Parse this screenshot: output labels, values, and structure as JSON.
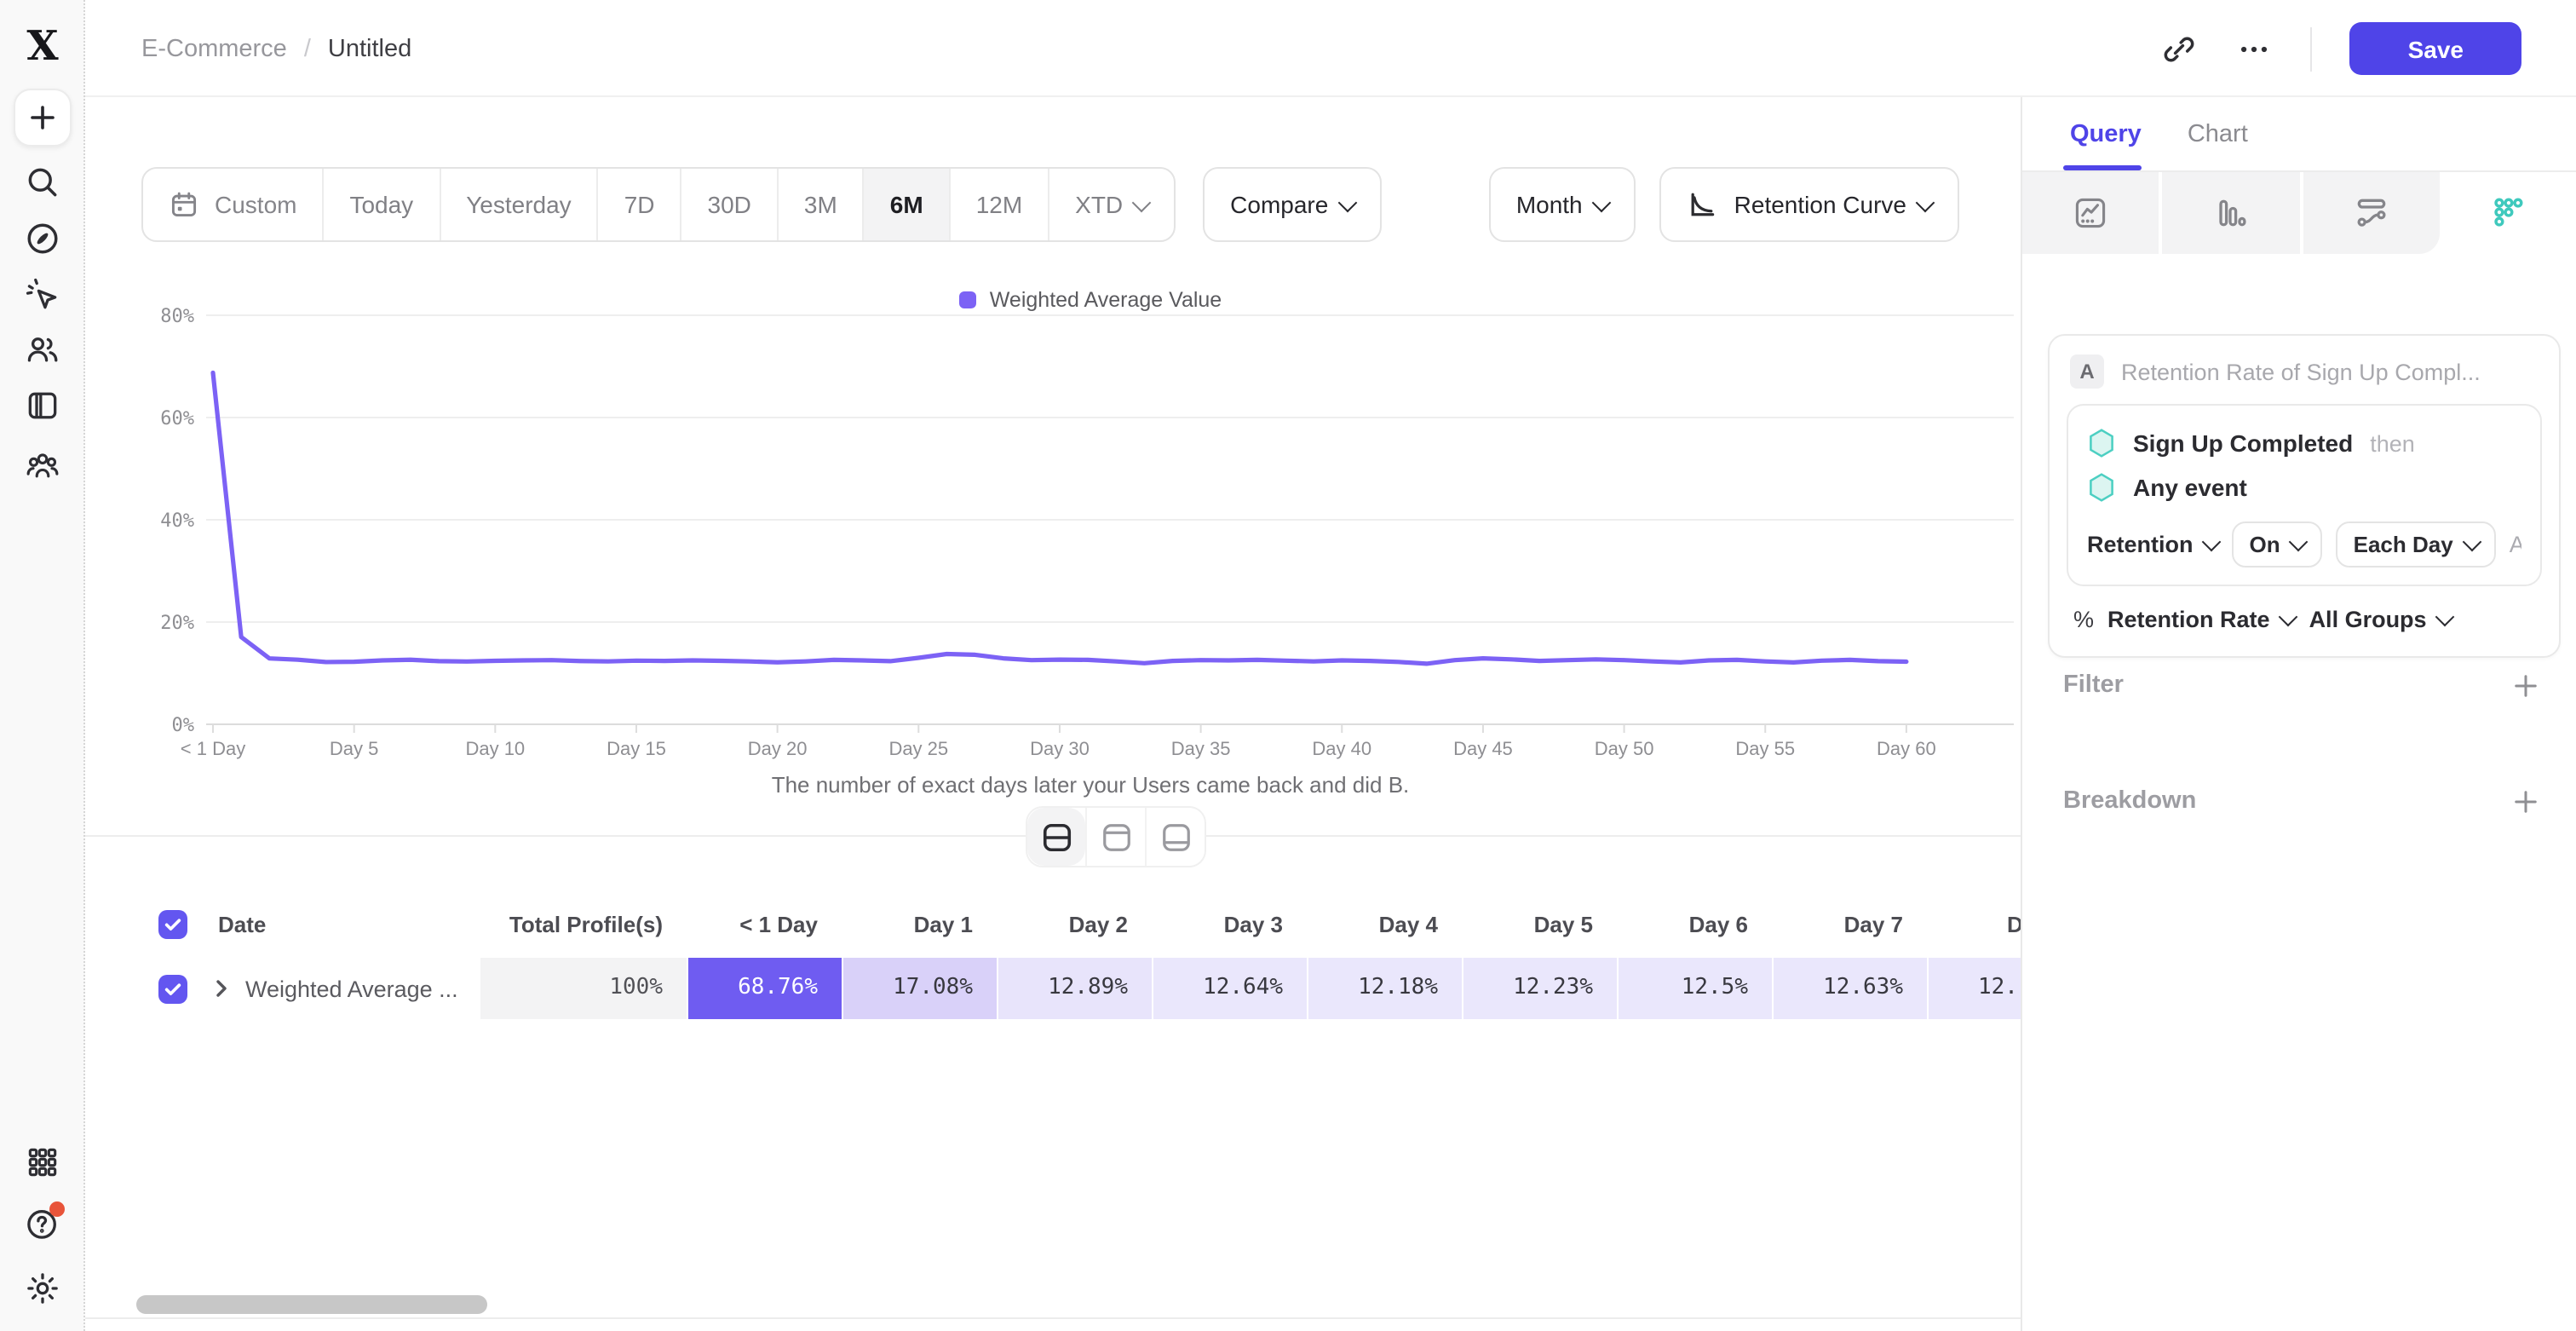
{
  "app": {
    "accent": "#4f44e8",
    "line_purple": "#7c62f5",
    "teal": "#3fc9bd",
    "alert_red": "#e8543a"
  },
  "header": {
    "breadcrumb": {
      "project": "E-Commerce",
      "separator": "/",
      "title": "Untitled"
    },
    "actions": {
      "save_label": "Save",
      "icons": [
        "link-icon",
        "more-icon"
      ]
    }
  },
  "sidebar": {
    "icons": [
      "plus",
      "search",
      "compass",
      "cursor-sparkle",
      "users",
      "boards",
      "cohorts"
    ],
    "bottom_icons": [
      "apps-grid",
      "help",
      "settings"
    ],
    "help_badge_color": "#e8543a"
  },
  "toolbar": {
    "ranges": [
      {
        "label": "Custom",
        "icon": "calendar-icon"
      },
      {
        "label": "Today"
      },
      {
        "label": "Yesterday"
      },
      {
        "label": "7D"
      },
      {
        "label": "30D"
      },
      {
        "label": "3M"
      },
      {
        "label": "6M",
        "active": true
      },
      {
        "label": "12M"
      },
      {
        "label": "XTD",
        "chevron": true
      }
    ],
    "compare_label": "Compare",
    "granularity_label": "Month",
    "chart_type_label": "Retention Curve"
  },
  "chart_data": {
    "type": "line",
    "title": "",
    "xlabel": "",
    "ylabel": "Retention Rate",
    "ylim": [
      0,
      80
    ],
    "grid": true,
    "legend_position": "top",
    "yticks": [
      "0%",
      "20%",
      "40%",
      "60%",
      "80%"
    ],
    "xtick_labels": [
      "< 1 Day",
      "Day 5",
      "Day 10",
      "Day 15",
      "Day 20",
      "Day 25",
      "Day 30",
      "Day 35",
      "Day 40",
      "Day 45",
      "Day 50",
      "Day 55",
      "Day 60"
    ],
    "xtick_days": [
      0,
      5,
      10,
      15,
      20,
      25,
      30,
      35,
      40,
      45,
      50,
      55,
      60
    ],
    "x_range": [
      0,
      60
    ],
    "series": [
      {
        "name": "Weighted Average Value",
        "color": "#7c62f5",
        "values": [
          68.76,
          17.08,
          12.89,
          12.64,
          12.18,
          12.23,
          12.5,
          12.63,
          12.35,
          12.28,
          12.42,
          12.5,
          12.55,
          12.38,
          12.3,
          12.45,
          12.4,
          12.5,
          12.42,
          12.3,
          12.12,
          12.3,
          12.6,
          12.5,
          12.35,
          13.0,
          13.75,
          13.6,
          12.9,
          12.55,
          12.65,
          12.6,
          12.3,
          11.95,
          12.4,
          12.55,
          12.5,
          12.6,
          12.45,
          12.3,
          12.5,
          12.4,
          12.2,
          11.85,
          12.55,
          12.9,
          12.7,
          12.4,
          12.55,
          12.7,
          12.55,
          12.3,
          12.1,
          12.5,
          12.6,
          12.3,
          12.1,
          12.45,
          12.6,
          12.35,
          12.25
        ]
      }
    ]
  },
  "caption": "The number of exact days later your Users came back and did B.",
  "view_toggles": [
    "split-view",
    "chart-only-view",
    "table-only-view"
  ],
  "active_toggle": 0,
  "table": {
    "date_header": "Date",
    "row_label": "Weighted Average ...",
    "columns": [
      {
        "label": "Total Profile(s)",
        "value": "100%",
        "bg": "#f3f3f4",
        "fg": "#515156",
        "width": "total"
      },
      {
        "label": "< 1 Day",
        "value": "68.76%",
        "bg": "#6f5cf1",
        "fg": "#ffffff"
      },
      {
        "label": "Day 1",
        "value": "17.08%",
        "bg": "#d9d1f9",
        "fg": "#38383f"
      },
      {
        "label": "Day 2",
        "value": "12.89%",
        "bg": "#e8e4fb",
        "fg": "#38383f"
      },
      {
        "label": "Day 3",
        "value": "12.64%",
        "bg": "#eae7fc",
        "fg": "#38383f"
      },
      {
        "label": "Day 4",
        "value": "12.18%",
        "bg": "#eae7fc",
        "fg": "#38383f"
      },
      {
        "label": "Day 5",
        "value": "12.23%",
        "bg": "#eae7fc",
        "fg": "#38383f"
      },
      {
        "label": "Day 6",
        "value": "12.5%",
        "bg": "#eae7fc",
        "fg": "#38383f"
      },
      {
        "label": "Day 7",
        "value": "12.63%",
        "bg": "#eae7fc",
        "fg": "#38383f"
      },
      {
        "label": "D",
        "value": "12.",
        "bg": "#eae7fc",
        "fg": "#38383f",
        "clipped": true
      }
    ]
  },
  "panel": {
    "tabs": [
      {
        "label": "Query",
        "active": true
      },
      {
        "label": "Chart",
        "active": false
      }
    ],
    "report_icons": [
      "insights-icon",
      "funnels-icon",
      "flows-icon",
      "retention-icon"
    ],
    "active_report": 3,
    "query": {
      "badge": "A",
      "title": "Retention Rate of Sign Up Compl...",
      "events": [
        {
          "name": "Sign Up Completed",
          "suffix": "then"
        },
        {
          "name": "Any event",
          "suffix": ""
        }
      ],
      "controls": [
        {
          "label": "Retention",
          "style": "plain"
        },
        {
          "label": "On",
          "style": "button"
        },
        {
          "label": "Each Day",
          "style": "button"
        },
        {
          "label": "Adv...",
          "style": "muted"
        }
      ],
      "measure": {
        "prefix": "%",
        "label": "Retention Rate",
        "group": "All Groups"
      }
    },
    "sections": [
      {
        "label": "Filter"
      },
      {
        "label": "Breakdown"
      }
    ]
  },
  "scrollbar": {
    "thumb_color": "#c7c7c7"
  }
}
